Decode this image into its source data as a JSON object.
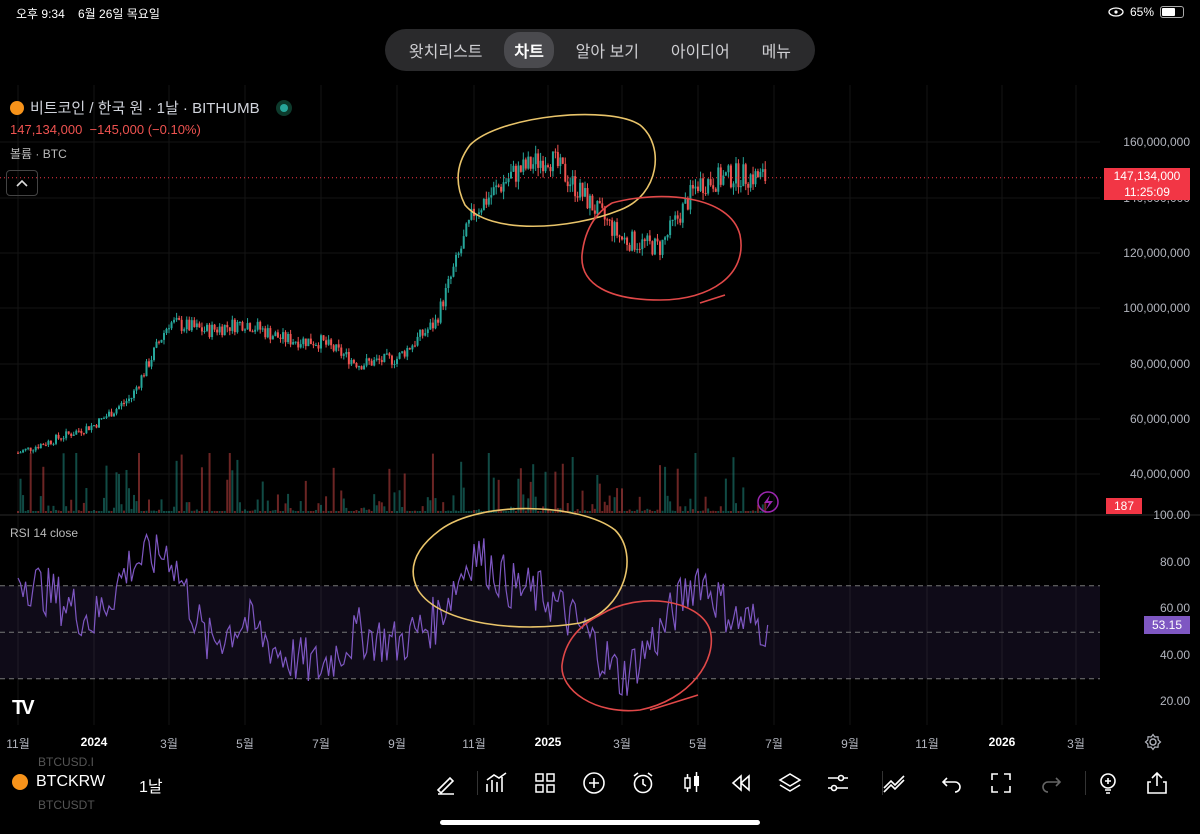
{
  "status_bar": {
    "time": "오후 9:34",
    "date": "6월 26일 목요일",
    "battery": "65%",
    "battery_level": 0.65
  },
  "nav": {
    "tabs": [
      "왓치리스트",
      "차트",
      "알아 보기",
      "아이디어",
      "메뉴"
    ],
    "active": 1
  },
  "header": {
    "symbol_title": "비트코인 / 한국 원 · 1날 · BITHUMB",
    "price_change": "147,134,000  −145,000 (−0.10%)",
    "volume_label": "볼륨 · BTC",
    "collapse_icon": "chevron-up-icon"
  },
  "price_axis": {
    "ticks": [
      "160,000,000",
      "140,000,000",
      "120,000,000",
      "100,000,000",
      "80,000,000",
      "60,000,000",
      "40,000,000"
    ],
    "last_price": "147,134,000",
    "countdown": "11:25:09",
    "volume_badge": "187"
  },
  "rsi": {
    "label": "RSI 14 close",
    "ticks": [
      "100.00",
      "80.00",
      "60.00",
      "40.00",
      "20.00"
    ],
    "value_badge": "53.15"
  },
  "time_axis": {
    "ticks": [
      {
        "label": "11월",
        "bold": false
      },
      {
        "label": "2024",
        "bold": true
      },
      {
        "label": "3월",
        "bold": false
      },
      {
        "label": "5월",
        "bold": false
      },
      {
        "label": "7월",
        "bold": false
      },
      {
        "label": "9월",
        "bold": false
      },
      {
        "label": "11월",
        "bold": false
      },
      {
        "label": "2025",
        "bold": true
      },
      {
        "label": "3월",
        "bold": false
      },
      {
        "label": "5월",
        "bold": false
      },
      {
        "label": "7월",
        "bold": false
      },
      {
        "label": "9월",
        "bold": false
      },
      {
        "label": "11월",
        "bold": false
      },
      {
        "label": "2026",
        "bold": true
      },
      {
        "label": "3월",
        "bold": false
      }
    ]
  },
  "toolbar": {
    "symbol": "BTCKRW",
    "interval": "1날",
    "ghost_above": "BTCUSD.I",
    "ghost_below": "BTCUSDT",
    "tools": [
      "draw-pen-icon",
      "indicators-icon",
      "layout-grid-icon",
      "add-circle-icon",
      "alert-clock-icon",
      "candle-type-icon",
      "replay-icon",
      "layers-icon",
      "settings-sliders-icon",
      "strategy-icon",
      "undo-icon",
      "fullscreen-icon",
      "redo-icon",
      "idea-bulb-icon",
      "share-icon"
    ]
  },
  "colors": {
    "up": "#26a69a",
    "down": "#ef5350",
    "rsi_line": "#7e57c2",
    "annotation_yellow": "#e9c46a",
    "annotation_red": "#e04848",
    "background": "#000000"
  },
  "chart_data": [
    {
      "type": "candlestick",
      "title": "비트코인 / 한국 원 · 1날 · BITHUMB",
      "xlabel": "",
      "ylabel": "",
      "y_unit": "KRW",
      "ylim": [
        30000000,
        170000000
      ],
      "approx_daily_closes": [
        {
          "x": "2023-11",
          "y": 48000000
        },
        {
          "x": "2024-01",
          "y": 58000000
        },
        {
          "x": "2024-02",
          "y": 68000000
        },
        {
          "x": "2024-03",
          "y": 95000000
        },
        {
          "x": "2024-04",
          "y": 92000000
        },
        {
          "x": "2024-05",
          "y": 95000000
        },
        {
          "x": "2024-06",
          "y": 89000000
        },
        {
          "x": "2024-07",
          "y": 88000000
        },
        {
          "x": "2024-08",
          "y": 80000000
        },
        {
          "x": "2024-09",
          "y": 82000000
        },
        {
          "x": "2024-10",
          "y": 95000000
        },
        {
          "x": "2024-11",
          "y": 135000000
        },
        {
          "x": "2024-12",
          "y": 148000000
        },
        {
          "x": "2025-01",
          "y": 155000000
        },
        {
          "x": "2025-02",
          "y": 140000000
        },
        {
          "x": "2025-03",
          "y": 125000000
        },
        {
          "x": "2025-04",
          "y": 122000000
        },
        {
          "x": "2025-05",
          "y": 145000000
        },
        {
          "x": "2025-06",
          "y": 148000000
        },
        {
          "x": "2025-06-26",
          "y": 147134000
        }
      ]
    },
    {
      "type": "line",
      "title": "RSI 14 close",
      "ylim": [
        10,
        100
      ],
      "bands": [
        30,
        50,
        70
      ],
      "approx_values": [
        {
          "x": "2023-11",
          "y": 75
        },
        {
          "x": "2024-01",
          "y": 55
        },
        {
          "x": "2024-02",
          "y": 80
        },
        {
          "x": "2024-03",
          "y": 85
        },
        {
          "x": "2024-04",
          "y": 45
        },
        {
          "x": "2024-05",
          "y": 55
        },
        {
          "x": "2024-06",
          "y": 40
        },
        {
          "x": "2024-07",
          "y": 35
        },
        {
          "x": "2024-08",
          "y": 50
        },
        {
          "x": "2024-09",
          "y": 45
        },
        {
          "x": "2024-10",
          "y": 55
        },
        {
          "x": "2024-11",
          "y": 85
        },
        {
          "x": "2024-12",
          "y": 70
        },
        {
          "x": "2025-01",
          "y": 65
        },
        {
          "x": "2025-02",
          "y": 50
        },
        {
          "x": "2025-03",
          "y": 30
        },
        {
          "x": "2025-04",
          "y": 50
        },
        {
          "x": "2025-05",
          "y": 75
        },
        {
          "x": "2025-06",
          "y": 55
        },
        {
          "x": "2025-06-26",
          "y": 53.15
        }
      ]
    }
  ]
}
